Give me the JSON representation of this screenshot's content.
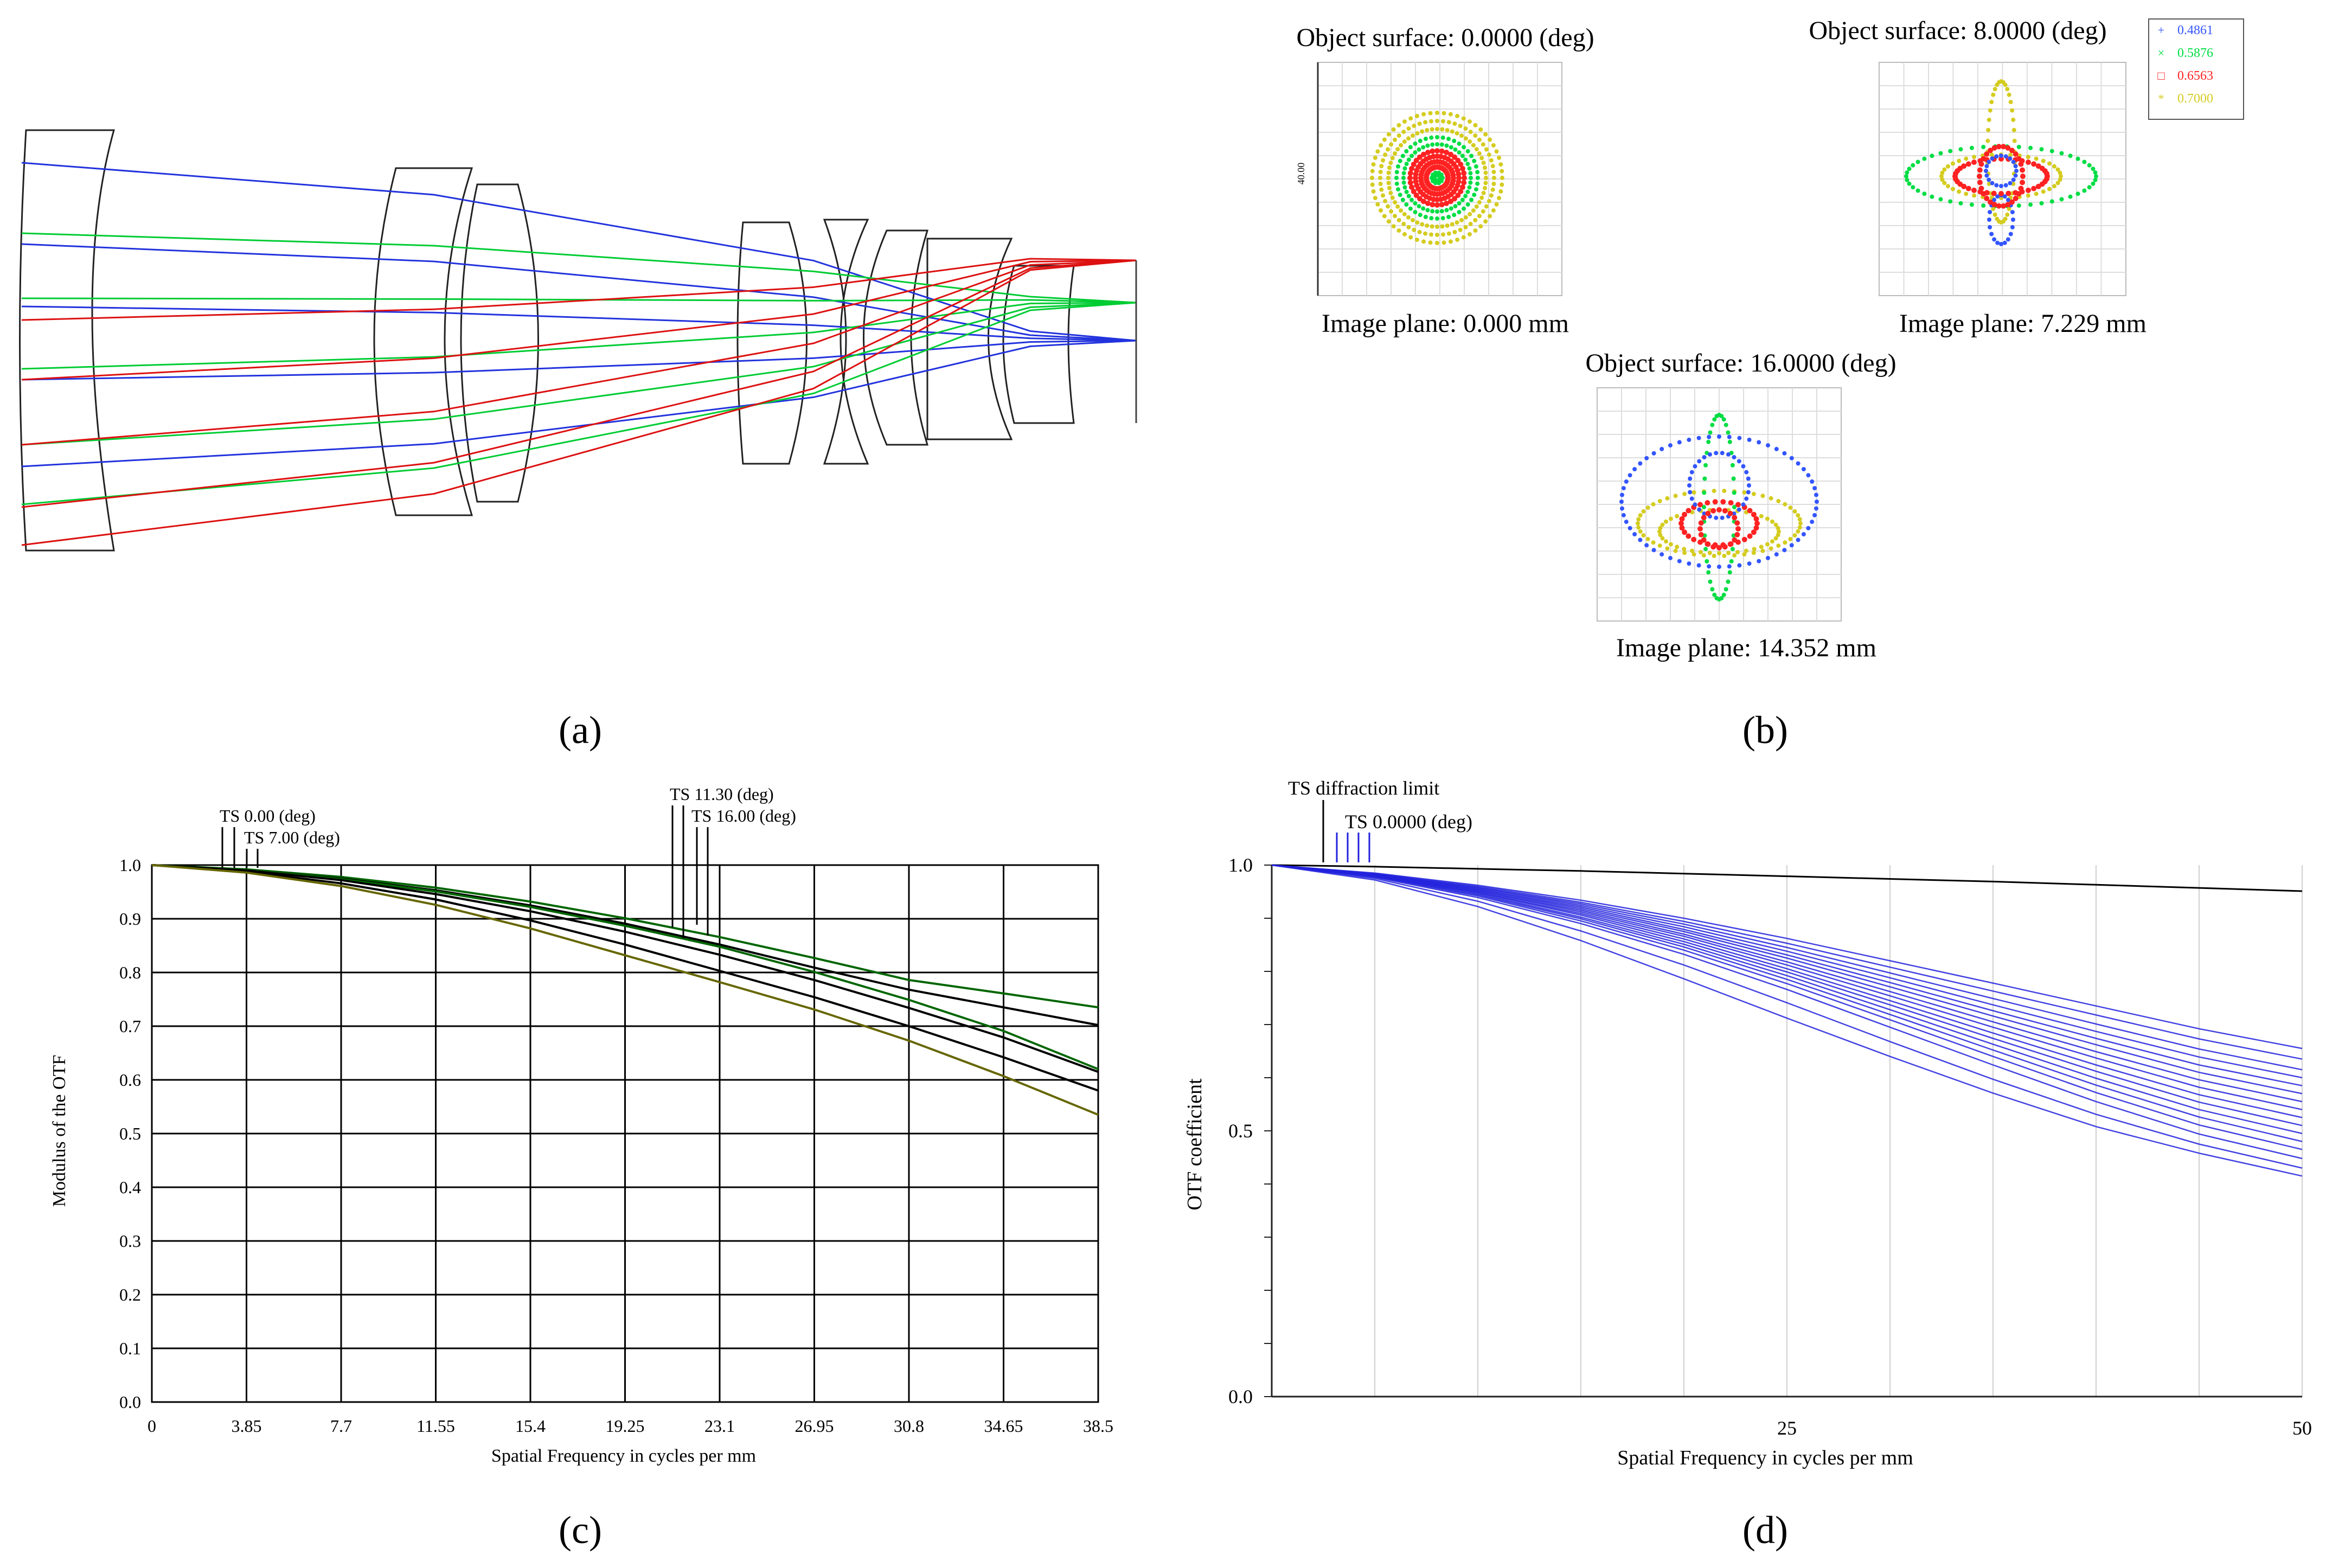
{
  "panels": {
    "a": {
      "label": "(a)"
    },
    "b": {
      "label": "(b)",
      "legend": [
        {
          "wavelength": "0.4861",
          "color": "#3355ff",
          "marker": "+"
        },
        {
          "wavelength": "0.5876",
          "color": "#00dd44",
          "marker": "x"
        },
        {
          "wavelength": "0.6563",
          "color": "#ff2222",
          "marker": "square"
        },
        {
          "wavelength": "0.7000",
          "color": "#d4cc20",
          "marker": "asterisk"
        }
      ],
      "spots": [
        {
          "object": "Object surface: 0.0000 (deg)",
          "image": "Image plane: 0.000 mm",
          "scale_label": "40.00"
        },
        {
          "object": "Object surface: 8.0000 (deg)",
          "image": "Image plane: 7.229 mm"
        },
        {
          "object": "Object surface: 16.0000 (deg)",
          "image": "Image plane: 14.352 mm"
        }
      ]
    },
    "c": {
      "label": "(c)"
    },
    "d": {
      "label": "(d)"
    }
  },
  "chart_data": [
    {
      "panel": "c",
      "type": "line",
      "title": "",
      "xlabel": "Spatial Frequency in cycles per mm",
      "ylabel": "Modulus of the OTF",
      "xlim": [
        0,
        38.5
      ],
      "ylim": [
        0,
        1.0
      ],
      "xticks": [
        "0",
        "3.85",
        "7.7",
        "11.55",
        "15.4",
        "19.25",
        "23.1",
        "26.95",
        "30.8",
        "34.65",
        "38.5"
      ],
      "yticks": [
        "0.0",
        "0.1",
        "0.2",
        "0.3",
        "0.4",
        "0.5",
        "0.6",
        "0.7",
        "0.8",
        "0.9",
        "1.0"
      ],
      "grid": true,
      "annotations": [
        "TS 0.00 (deg)",
        "TS 7.00 (deg)",
        "TS 11.30 (deg)",
        "TS 16.00 (deg)"
      ],
      "x": [
        0,
        3.85,
        7.7,
        11.55,
        15.4,
        19.25,
        23.1,
        26.95,
        30.8,
        34.65,
        38.5
      ],
      "series": [
        {
          "name": "curve 1",
          "color": "#006600",
          "values": [
            1.0,
            0.992,
            0.978,
            0.958,
            0.932,
            0.901,
            0.866,
            0.827,
            0.786,
            0.761,
            0.735
          ]
        },
        {
          "name": "curve 2",
          "color": "#000000",
          "values": [
            1.0,
            0.991,
            0.975,
            0.953,
            0.925,
            0.891,
            0.852,
            0.809,
            0.768,
            0.735,
            0.702
          ]
        },
        {
          "name": "curve 3",
          "color": "#006600",
          "values": [
            1.0,
            0.991,
            0.974,
            0.951,
            0.922,
            0.887,
            0.848,
            0.801,
            0.749,
            0.691,
            0.62
          ]
        },
        {
          "name": "curve 4",
          "color": "#000000",
          "values": [
            1.0,
            0.99,
            0.972,
            0.946,
            0.914,
            0.876,
            0.833,
            0.786,
            0.734,
            0.679,
            0.615
          ]
        },
        {
          "name": "curve 5",
          "color": "#000000",
          "values": [
            1.0,
            0.988,
            0.966,
            0.936,
            0.897,
            0.852,
            0.803,
            0.754,
            0.7,
            0.642,
            0.58
          ]
        },
        {
          "name": "curve 6",
          "color": "#666600",
          "values": [
            1.0,
            0.986,
            0.961,
            0.926,
            0.882,
            0.832,
            0.782,
            0.731,
            0.673,
            0.607,
            0.535
          ]
        }
      ]
    },
    {
      "panel": "d",
      "type": "line",
      "title": "",
      "xlabel": "Spatial Frequency in cycles per mm",
      "ylabel": "OTF coefficient",
      "xlim": [
        0,
        50
      ],
      "ylim": [
        0,
        1.0
      ],
      "xticks": [
        "25",
        "50"
      ],
      "yticks": [
        "0.0",
        "0.5",
        "1.0"
      ],
      "grid": true,
      "annotations": [
        "TS diffraction limit",
        "TS 0.0000 (deg)"
      ],
      "x": [
        0,
        5,
        10,
        15,
        20,
        25,
        30,
        35,
        40,
        45,
        50
      ],
      "series": [
        {
          "name": "TS diffraction limit",
          "color": "#000000",
          "values": [
            1.0,
            0.997,
            0.993,
            0.989,
            0.984,
            0.979,
            0.974,
            0.969,
            0.963,
            0.957,
            0.951
          ]
        },
        {
          "name": "blue 1",
          "color": "#2222dd",
          "values": [
            1.0,
            0.985,
            0.962,
            0.934,
            0.9,
            0.862,
            0.82,
            0.778,
            0.735,
            0.692,
            0.655
          ]
        },
        {
          "name": "blue 2",
          "color": "#2222dd",
          "values": [
            1.0,
            0.984,
            0.96,
            0.93,
            0.894,
            0.853,
            0.808,
            0.763,
            0.718,
            0.673,
            0.635
          ]
        },
        {
          "name": "blue 3",
          "color": "#2222dd",
          "values": [
            1.0,
            0.983,
            0.958,
            0.927,
            0.889,
            0.845,
            0.797,
            0.749,
            0.701,
            0.654,
            0.615
          ]
        },
        {
          "name": "blue 4",
          "color": "#2222dd",
          "values": [
            1.0,
            0.983,
            0.957,
            0.924,
            0.884,
            0.838,
            0.788,
            0.737,
            0.687,
            0.639,
            0.6
          ]
        },
        {
          "name": "blue 5",
          "color": "#2222dd",
          "values": [
            1.0,
            0.982,
            0.955,
            0.921,
            0.879,
            0.831,
            0.779,
            0.726,
            0.674,
            0.624,
            0.585
          ]
        },
        {
          "name": "blue 6",
          "color": "#2222dd",
          "values": [
            1.0,
            0.982,
            0.954,
            0.918,
            0.875,
            0.825,
            0.771,
            0.716,
            0.662,
            0.61,
            0.57
          ]
        },
        {
          "name": "blue 7",
          "color": "#2222dd",
          "values": [
            1.0,
            0.981,
            0.952,
            0.915,
            0.87,
            0.818,
            0.762,
            0.705,
            0.649,
            0.596,
            0.555
          ]
        },
        {
          "name": "blue 8",
          "color": "#2222dd",
          "values": [
            1.0,
            0.981,
            0.951,
            0.912,
            0.866,
            0.812,
            0.754,
            0.695,
            0.637,
            0.582,
            0.54
          ]
        },
        {
          "name": "blue 9",
          "color": "#2222dd",
          "values": [
            1.0,
            0.98,
            0.949,
            0.909,
            0.861,
            0.805,
            0.745,
            0.684,
            0.624,
            0.568,
            0.525
          ]
        },
        {
          "name": "blue 10",
          "color": "#2222dd",
          "values": [
            1.0,
            0.98,
            0.948,
            0.906,
            0.856,
            0.799,
            0.737,
            0.674,
            0.612,
            0.554,
            0.51
          ]
        },
        {
          "name": "blue 11",
          "color": "#2222dd",
          "values": [
            1.0,
            0.979,
            0.946,
            0.902,
            0.851,
            0.792,
            0.728,
            0.663,
            0.599,
            0.54,
            0.495
          ]
        },
        {
          "name": "blue 12",
          "color": "#2222dd",
          "values": [
            1.0,
            0.979,
            0.944,
            0.899,
            0.846,
            0.785,
            0.719,
            0.652,
            0.586,
            0.526,
            0.48
          ]
        },
        {
          "name": "blue 13",
          "color": "#2222dd",
          "values": [
            1.0,
            0.978,
            0.942,
            0.895,
            0.84,
            0.777,
            0.709,
            0.64,
            0.572,
            0.511,
            0.465
          ]
        },
        {
          "name": "blue 14",
          "color": "#2222dd",
          "values": [
            1.0,
            0.977,
            0.939,
            0.89,
            0.832,
            0.766,
            0.695,
            0.624,
            0.555,
            0.494,
            0.448
          ]
        },
        {
          "name": "blue 15",
          "color": "#2222dd",
          "values": [
            1.0,
            0.975,
            0.932,
            0.876,
            0.812,
            0.741,
            0.668,
            0.597,
            0.531,
            0.475,
            0.43
          ]
        },
        {
          "name": "blue 16",
          "color": "#2222dd",
          "values": [
            1.0,
            0.972,
            0.922,
            0.858,
            0.786,
            0.712,
            0.64,
            0.571,
            0.508,
            0.458,
            0.415
          ]
        }
      ]
    }
  ]
}
